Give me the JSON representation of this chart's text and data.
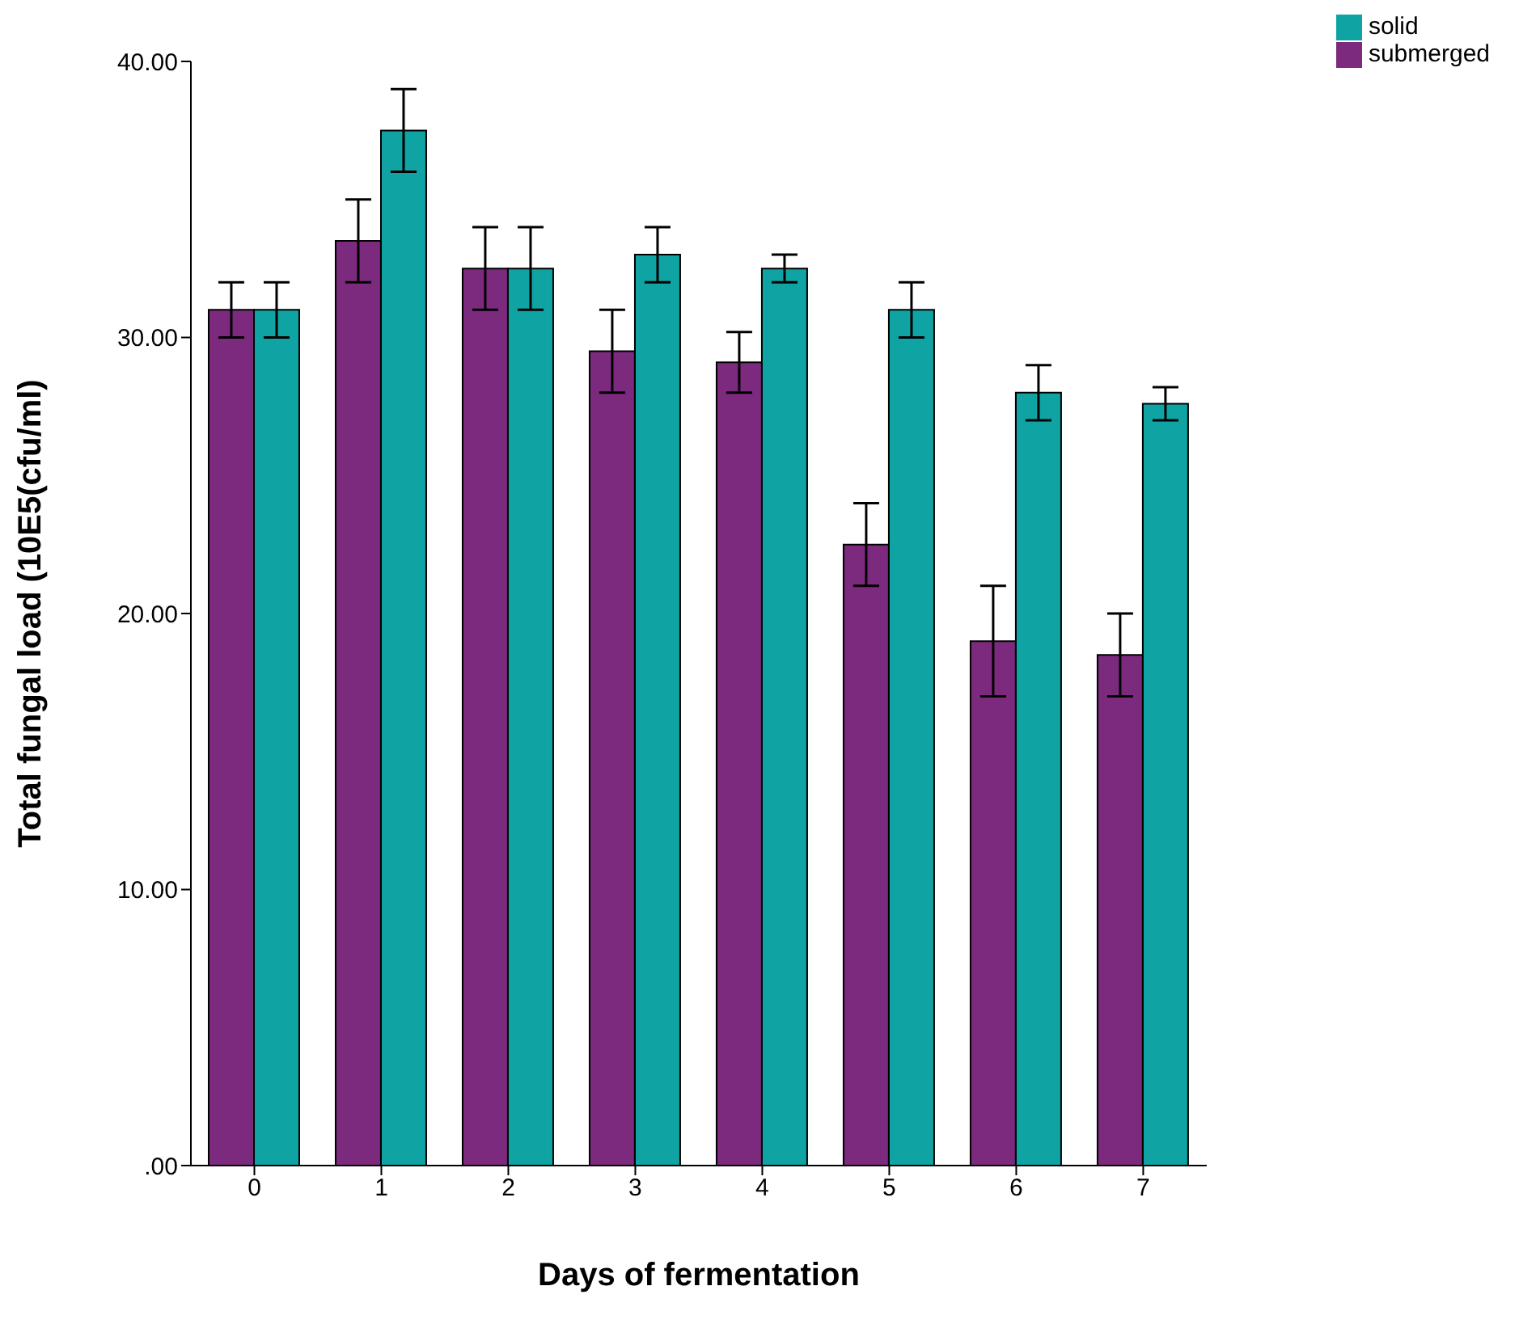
{
  "chart_data": {
    "type": "bar",
    "xlabel": "Days of fermentation",
    "ylabel": "Total fungal load (10E5(cfu/ml)",
    "categories": [
      "0",
      "1",
      "2",
      "3",
      "4",
      "5",
      "6",
      "7"
    ],
    "series": [
      {
        "name": "submerged",
        "color": "#7b2a7e",
        "values": [
          31,
          33.5,
          32.5,
          29.5,
          29.1,
          22.5,
          19,
          18.5
        ],
        "errors": [
          [
            30,
            32
          ],
          [
            32,
            35
          ],
          [
            31,
            34
          ],
          [
            28,
            31
          ],
          [
            28,
            30.2
          ],
          [
            21,
            24
          ],
          [
            17,
            21
          ],
          [
            17,
            20
          ]
        ]
      },
      {
        "name": "solid",
        "color": "#0fa3a3",
        "values": [
          31,
          37.5,
          32.5,
          33,
          32.5,
          31,
          28,
          27.6
        ],
        "errors": [
          [
            30,
            32
          ],
          [
            36,
            39
          ],
          [
            31,
            34
          ],
          [
            32,
            34
          ],
          [
            32,
            33
          ],
          [
            30,
            32
          ],
          [
            27,
            29
          ],
          [
            27,
            28.2
          ]
        ]
      }
    ],
    "ylim": [
      0,
      40
    ],
    "yticks": [
      {
        "value": 0,
        "label": ".00"
      },
      {
        "value": 10,
        "label": "10.00"
      },
      {
        "value": 20,
        "label": "20.00"
      },
      {
        "value": 30,
        "label": "30.00"
      },
      {
        "value": 40,
        "label": "40.00"
      }
    ],
    "grid": false,
    "legend": "top right"
  }
}
